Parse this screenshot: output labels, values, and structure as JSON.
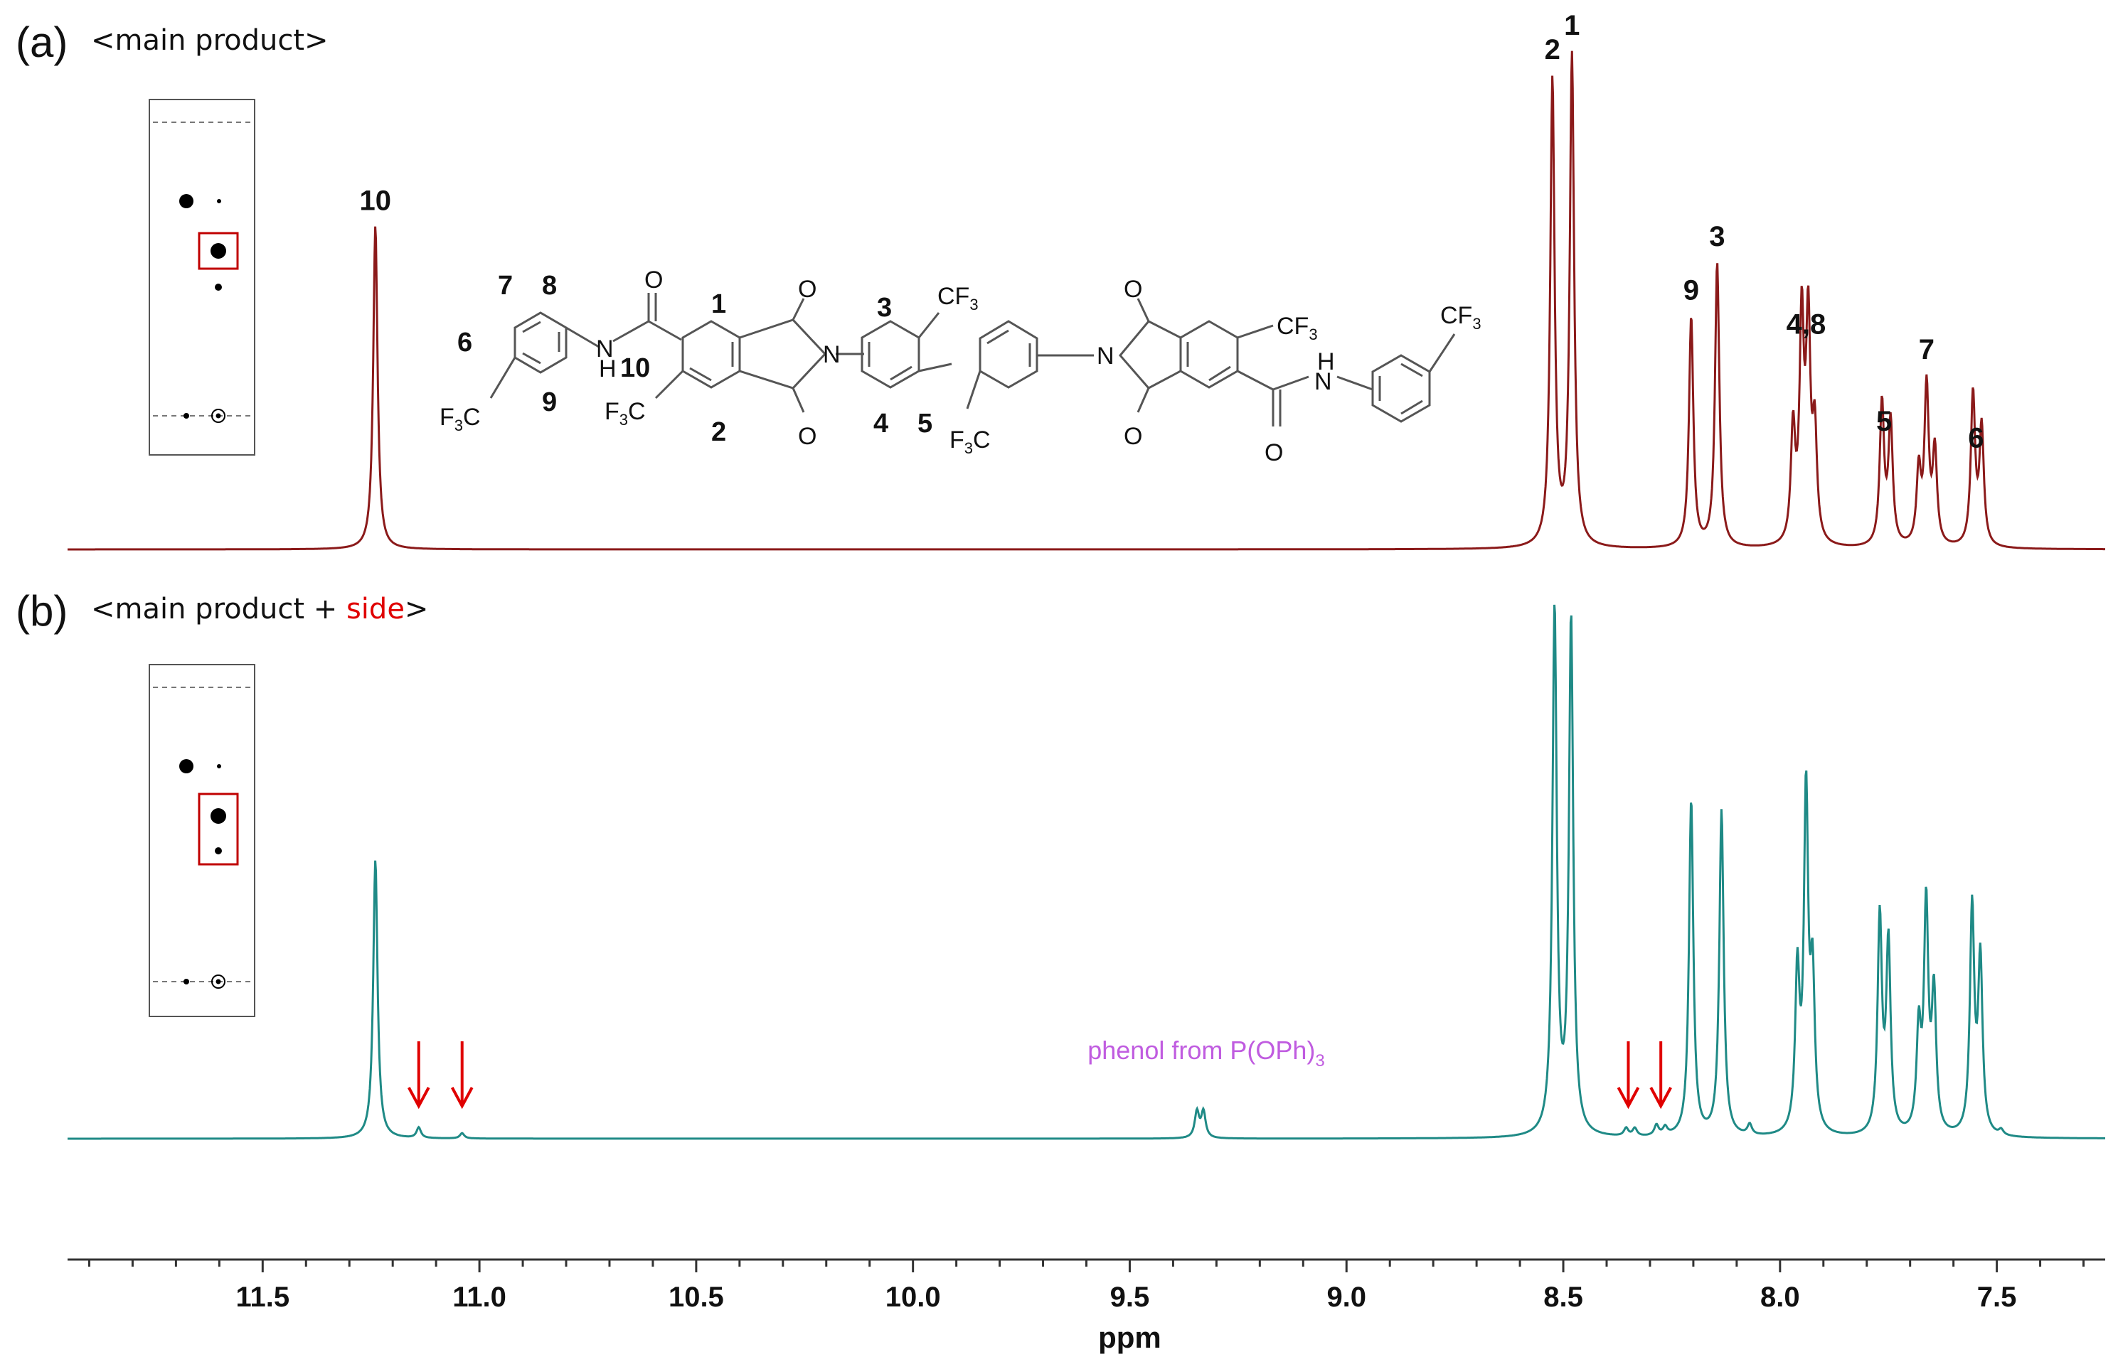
{
  "chart_data": {
    "type": "line",
    "xlabel": "ppm",
    "xlim": [
      11.95,
      7.25
    ],
    "xticks": [
      "11.5",
      "11.0",
      "10.5",
      "10.0",
      "9.5",
      "9.0",
      "8.5",
      "8.0",
      "7.5"
    ],
    "grid": false,
    "panels": [
      {
        "id": "a",
        "label": "(a)",
        "caption_prefix": "<main product",
        "caption_highlight": "",
        "caption_suffix": ">",
        "color": "#8b1a1a",
        "peaks": [
          {
            "ppm": 11.24,
            "intensity": 0.66
          },
          {
            "ppm": 8.525,
            "intensity": 0.95
          },
          {
            "ppm": 8.48,
            "intensity": 1.0
          },
          {
            "ppm": 8.205,
            "intensity": 0.47
          },
          {
            "ppm": 8.145,
            "intensity": 0.58
          },
          {
            "ppm": 7.97,
            "intensity": 0.23
          },
          {
            "ppm": 7.95,
            "intensity": 0.45
          },
          {
            "ppm": 7.935,
            "intensity": 0.44
          },
          {
            "ppm": 7.92,
            "intensity": 0.22
          },
          {
            "ppm": 7.765,
            "intensity": 0.29
          },
          {
            "ppm": 7.745,
            "intensity": 0.25
          },
          {
            "ppm": 7.68,
            "intensity": 0.15
          },
          {
            "ppm": 7.662,
            "intensity": 0.32
          },
          {
            "ppm": 7.643,
            "intensity": 0.19
          },
          {
            "ppm": 7.555,
            "intensity": 0.31
          },
          {
            "ppm": 7.535,
            "intensity": 0.24
          }
        ],
        "peak_labels": [
          {
            "text": "10",
            "ppm": 11.24
          },
          {
            "text": "2",
            "ppm": 8.525
          },
          {
            "text": "1",
            "ppm": 8.48
          },
          {
            "text": "9",
            "ppm": 8.205
          },
          {
            "text": "3",
            "ppm": 8.145
          },
          {
            "text": "4,8",
            "ppm": 7.94
          },
          {
            "text": "5",
            "ppm": 7.76
          },
          {
            "text": "7",
            "ppm": 7.662
          },
          {
            "text": "6",
            "ppm": 7.548
          }
        ]
      },
      {
        "id": "b",
        "label": "(b)",
        "caption_prefix": "<main product + ",
        "caption_highlight": "side",
        "caption_suffix": ">",
        "color": "#1f8a86",
        "peaks": [
          {
            "ppm": 11.24,
            "intensity": 0.53
          },
          {
            "ppm": 11.14,
            "intensity": 0.02
          },
          {
            "ppm": 11.04,
            "intensity": 0.01
          },
          {
            "ppm": 9.345,
            "intensity": 0.05
          },
          {
            "ppm": 9.33,
            "intensity": 0.05
          },
          {
            "ppm": 8.52,
            "intensity": 1.0
          },
          {
            "ppm": 8.482,
            "intensity": 0.98
          },
          {
            "ppm": 8.355,
            "intensity": 0.015
          },
          {
            "ppm": 8.335,
            "intensity": 0.015
          },
          {
            "ppm": 8.285,
            "intensity": 0.02
          },
          {
            "ppm": 8.265,
            "intensity": 0.015
          },
          {
            "ppm": 8.205,
            "intensity": 0.64
          },
          {
            "ppm": 8.135,
            "intensity": 0.62
          },
          {
            "ppm": 8.07,
            "intensity": 0.02
          },
          {
            "ppm": 7.96,
            "intensity": 0.3
          },
          {
            "ppm": 7.94,
            "intensity": 0.64
          },
          {
            "ppm": 7.925,
            "intensity": 0.28
          },
          {
            "ppm": 7.77,
            "intensity": 0.41
          },
          {
            "ppm": 7.75,
            "intensity": 0.36
          },
          {
            "ppm": 7.68,
            "intensity": 0.19
          },
          {
            "ppm": 7.663,
            "intensity": 0.43
          },
          {
            "ppm": 7.645,
            "intensity": 0.26
          },
          {
            "ppm": 7.557,
            "intensity": 0.43
          },
          {
            "ppm": 7.538,
            "intensity": 0.33
          },
          {
            "ppm": 7.49,
            "intensity": 0.01
          }
        ],
        "arrows_ppm": [
          11.14,
          11.04,
          8.35,
          8.275
        ],
        "annotation": {
          "text": "phenol from P(OPh)",
          "subscript": "3",
          "ppm": 9.34
        }
      }
    ]
  },
  "structure": {
    "position_labels": [
      "1",
      "2",
      "3",
      "4",
      "5",
      "6",
      "7",
      "8",
      "9",
      "10"
    ],
    "cf3_main": "CF",
    "cf3_left": "F",
    "cf3_left_c": "C",
    "subscript_3": "3",
    "nitrogen": "N",
    "hydrogen": "H",
    "oxygen": "O"
  }
}
